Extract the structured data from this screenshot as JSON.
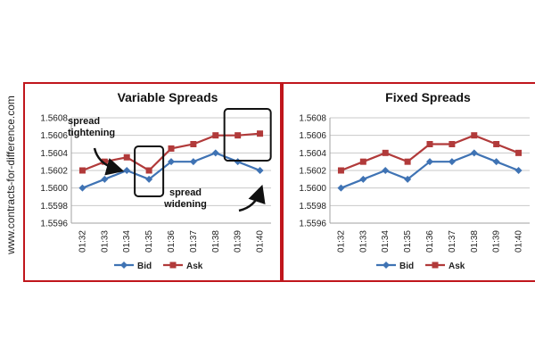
{
  "watermark": "www.contracts-for-difference.com",
  "colors": {
    "border": "#c0161c",
    "bid": "#3f73b4",
    "ask": "#b13a3a",
    "grid": "#c8c8c8",
    "axis": "#a0a0a0"
  },
  "chart_data": [
    {
      "type": "line",
      "title": "Variable Spreads",
      "categories": [
        "01:32",
        "01:33",
        "01:34",
        "01:35",
        "01:36",
        "01:37",
        "01:38",
        "01:39",
        "01:40"
      ],
      "yticks": [
        "1.5608",
        "1.5606",
        "1.5604",
        "1.5602",
        "1.5600",
        "1.5598",
        "1.5596"
      ],
      "ylim": [
        1.5596,
        1.5608
      ],
      "grid": true,
      "legend": "bottom",
      "series": [
        {
          "name": "Bid",
          "marker": "diamond",
          "values": [
            1.56,
            1.5601,
            1.5602,
            1.5601,
            1.5603,
            1.5603,
            1.5604,
            1.5603,
            1.5602
          ]
        },
        {
          "name": "Ask",
          "marker": "square",
          "values": [
            1.5602,
            1.5603,
            1.56035,
            1.5602,
            1.56045,
            1.5605,
            1.5606,
            1.5606,
            1.56062
          ]
        }
      ],
      "annotations": [
        {
          "lines": [
            "spread",
            "tightening"
          ]
        },
        {
          "lines": [
            "spread",
            "widening"
          ]
        }
      ]
    },
    {
      "type": "line",
      "title": "Fixed Spreads",
      "categories": [
        "01:32",
        "01:33",
        "01:34",
        "01:35",
        "01:36",
        "01:37",
        "01:38",
        "01:39",
        "01:40"
      ],
      "yticks": [
        "1.5608",
        "1.5606",
        "1.5604",
        "1.5602",
        "1.5600",
        "1.5598",
        "1.5596"
      ],
      "ylim": [
        1.5596,
        1.5608
      ],
      "grid": true,
      "legend": "bottom",
      "series": [
        {
          "name": "Bid",
          "marker": "diamond",
          "values": [
            1.56,
            1.5601,
            1.5602,
            1.5601,
            1.5603,
            1.5603,
            1.5604,
            1.5603,
            1.5602
          ]
        },
        {
          "name": "Ask",
          "marker": "square",
          "values": [
            1.5602,
            1.5603,
            1.5604,
            1.5603,
            1.5605,
            1.5605,
            1.5606,
            1.5605,
            1.5604
          ]
        }
      ]
    }
  ]
}
